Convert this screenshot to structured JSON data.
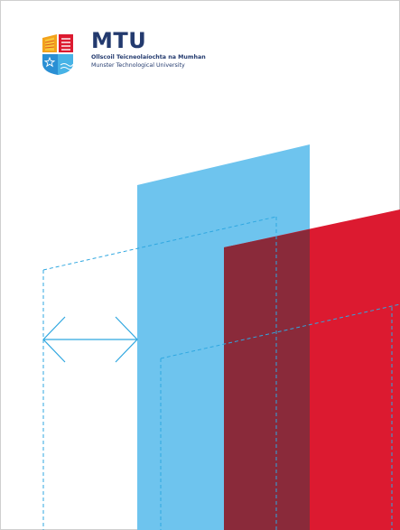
{
  "logo": {
    "wordmark": "MTU",
    "irish_name": "Ollscoil Teicneolaíochta na Mumhan",
    "english_name": "Munster Technological University"
  },
  "artwork": {
    "blue_color": "#6ec4ee",
    "red_color": "#dc1a30",
    "overlap_color": "#8a2a3a",
    "guide_color": "#2fa7e0",
    "icon": "double-arrow-icon"
  }
}
